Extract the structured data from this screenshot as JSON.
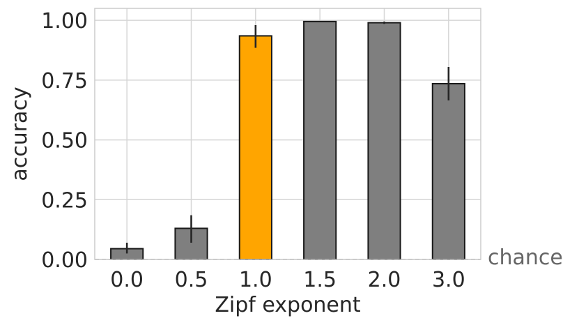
{
  "chart_data": {
    "type": "bar",
    "categories": [
      "0.0",
      "0.5",
      "1.0",
      "1.5",
      "2.0",
      "3.0"
    ],
    "values": [
      0.045,
      0.13,
      0.935,
      0.995,
      0.99,
      0.735
    ],
    "errors_low": [
      0.02,
      0.06,
      0.05,
      0.0,
      0.005,
      0.07
    ],
    "errors_high": [
      0.025,
      0.055,
      0.045,
      0.0,
      0.005,
      0.07
    ],
    "highlight_index": 2,
    "colors": {
      "default": "#7f7f7f",
      "highlight": "#ffa500",
      "edge": "#1a1a1a"
    },
    "title": "",
    "xlabel": "Zipf exponent",
    "ylabel": "accuracy",
    "ylim": [
      0,
      1.05
    ],
    "yticks": [
      "0.00",
      "0.25",
      "0.50",
      "0.75",
      "1.00"
    ],
    "ytick_values": [
      0,
      0.25,
      0.5,
      0.75,
      1.0
    ],
    "chance_value": 0.0,
    "chance_label": "chance",
    "grid": true
  }
}
